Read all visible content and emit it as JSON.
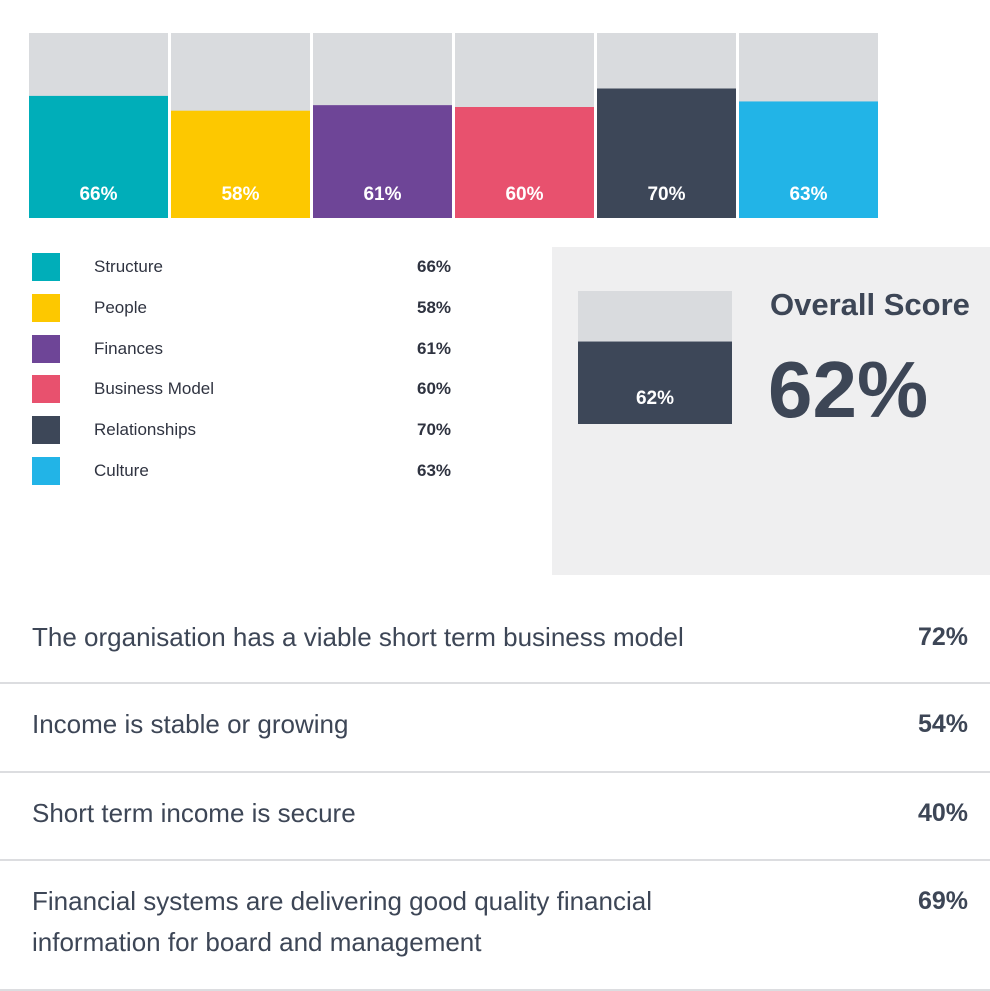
{
  "chart_data": {
    "type": "bar",
    "categories": [
      "Structure",
      "People",
      "Finances",
      "Business Model",
      "Relationships",
      "Culture"
    ],
    "values": [
      66,
      58,
      61,
      60,
      70,
      63
    ],
    "value_labels": [
      "66%",
      "58%",
      "61%",
      "60%",
      "70%",
      "63%"
    ],
    "colors": [
      "#00aeb9",
      "#fdc800",
      "#6e4597",
      "#e8516e",
      "#3d4758",
      "#22b4e7"
    ],
    "track_color": "#d9dbde",
    "ylim": [
      0,
      100
    ],
    "title": "",
    "xlabel": "",
    "ylabel": ""
  },
  "legend": {
    "items": [
      {
        "name": "Structure",
        "value": "66%",
        "color": "#00aeb9"
      },
      {
        "name": "People",
        "value": "58%",
        "color": "#fdc800"
      },
      {
        "name": "Finances",
        "value": "61%",
        "color": "#6e4597"
      },
      {
        "name": "Business Model",
        "value": "60%",
        "color": "#e8516e"
      },
      {
        "name": "Relationships",
        "value": "70%",
        "color": "#3d4758"
      },
      {
        "name": "Culture",
        "value": "63%",
        "color": "#22b4e7"
      }
    ]
  },
  "overall": {
    "title": "Overall Score",
    "value": 62,
    "value_label": "62%",
    "bar_color": "#3d4758"
  },
  "statements": [
    {
      "text": "The organisation has a viable short term business model",
      "value": "72%"
    },
    {
      "text": "Income is stable or growing",
      "value": "54%"
    },
    {
      "text": "Short term income is secure",
      "value": "40%"
    },
    {
      "text": "Financial systems are delivering good quality financial information for board and management",
      "value": "69%"
    }
  ]
}
